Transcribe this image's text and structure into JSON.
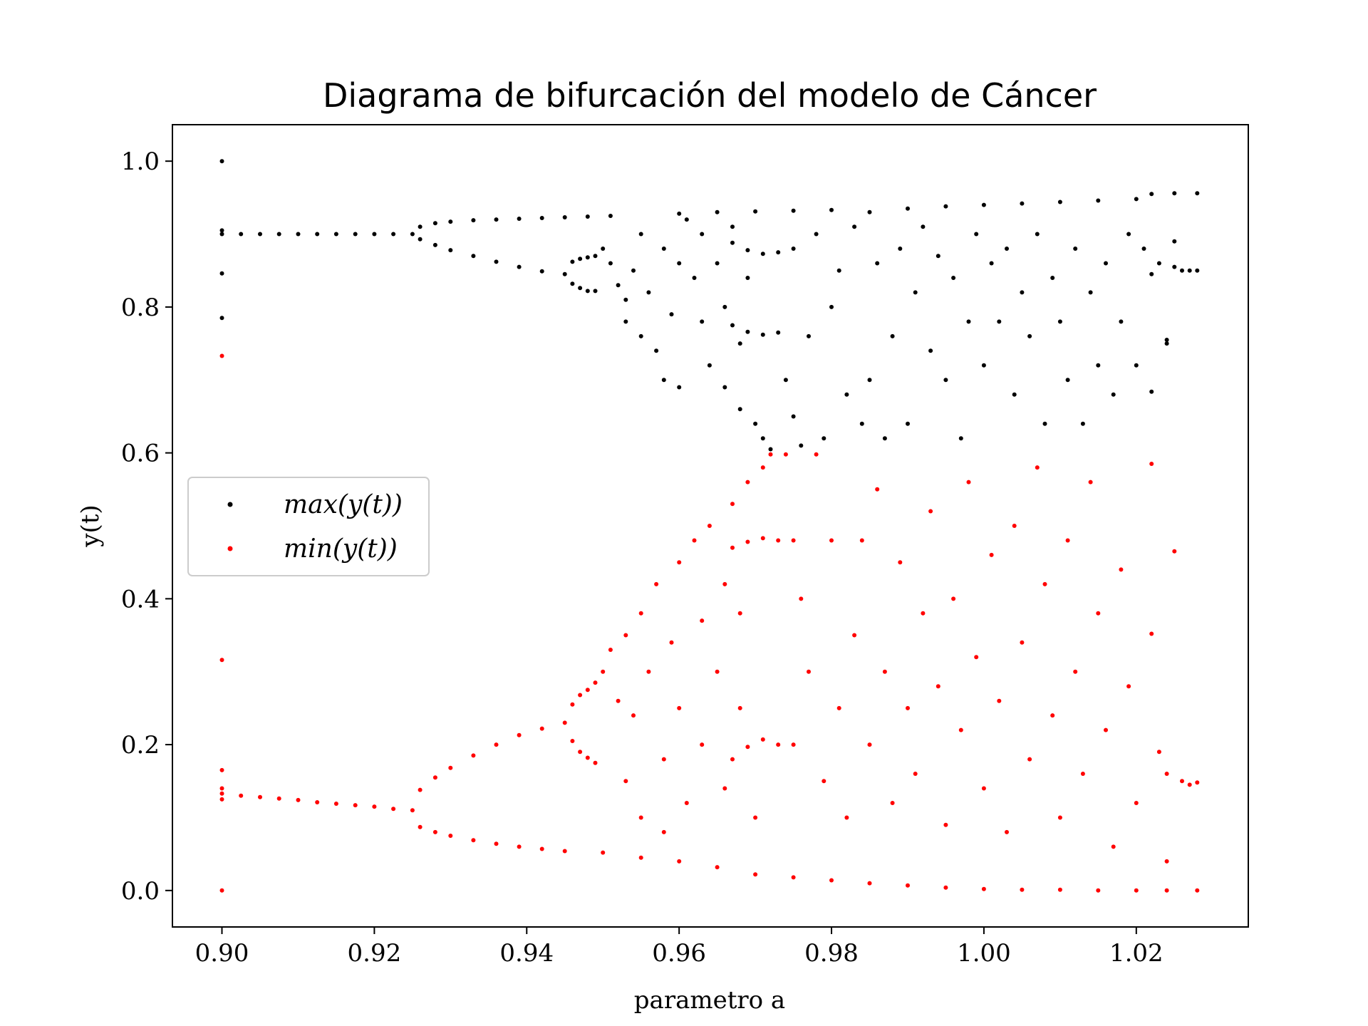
{
  "chart_data": {
    "type": "scatter",
    "title": "Diagrama de bifurcación del modelo de Cáncer",
    "xlabel": "parametro a",
    "ylabel": "y(t)",
    "xlim": [
      0.8935,
      1.0347
    ],
    "ylim": [
      -0.05,
      1.05
    ],
    "xticks": [
      0.9,
      0.92,
      0.94,
      0.96,
      0.98,
      1.0,
      1.02
    ],
    "xtick_labels": [
      "0.90",
      "0.92",
      "0.94",
      "0.96",
      "0.98",
      "1.00",
      "1.02"
    ],
    "yticks": [
      0.0,
      0.2,
      0.4,
      0.6,
      0.8,
      1.0
    ],
    "ytick_labels": [
      "0.0",
      "0.2",
      "0.4",
      "0.6",
      "0.8",
      "1.0"
    ],
    "grid": false,
    "legend_position": "center-left",
    "series": [
      {
        "name": "max(y(t))",
        "legend_label": "max(y(t))",
        "color": "#000000",
        "points": [
          [
            0.9,
            1.0
          ],
          [
            0.9,
            0.905
          ],
          [
            0.9,
            0.9
          ],
          [
            0.9,
            0.846
          ],
          [
            0.9,
            0.785
          ],
          [
            0.9025,
            0.9
          ],
          [
            0.905,
            0.9
          ],
          [
            0.9075,
            0.9
          ],
          [
            0.91,
            0.9
          ],
          [
            0.9125,
            0.9
          ],
          [
            0.915,
            0.9
          ],
          [
            0.9175,
            0.9
          ],
          [
            0.92,
            0.9
          ],
          [
            0.9225,
            0.9
          ],
          [
            0.925,
            0.9
          ],
          [
            0.926,
            0.91
          ],
          [
            0.928,
            0.915
          ],
          [
            0.93,
            0.917
          ],
          [
            0.933,
            0.919
          ],
          [
            0.936,
            0.92
          ],
          [
            0.939,
            0.921
          ],
          [
            0.942,
            0.922
          ],
          [
            0.945,
            0.923
          ],
          [
            0.948,
            0.924
          ],
          [
            0.951,
            0.925
          ],
          [
            0.926,
            0.893
          ],
          [
            0.928,
            0.885
          ],
          [
            0.93,
            0.878
          ],
          [
            0.933,
            0.87
          ],
          [
            0.936,
            0.862
          ],
          [
            0.939,
            0.855
          ],
          [
            0.942,
            0.849
          ],
          [
            0.945,
            0.845
          ],
          [
            0.946,
            0.862
          ],
          [
            0.947,
            0.866
          ],
          [
            0.948,
            0.868
          ],
          [
            0.949,
            0.87
          ],
          [
            0.946,
            0.832
          ],
          [
            0.947,
            0.826
          ],
          [
            0.948,
            0.822
          ],
          [
            0.949,
            0.822
          ],
          [
            0.95,
            0.88
          ],
          [
            0.951,
            0.86
          ],
          [
            0.952,
            0.83
          ],
          [
            0.953,
            0.81
          ],
          [
            0.953,
            0.78
          ],
          [
            0.954,
            0.85
          ],
          [
            0.955,
            0.9
          ],
          [
            0.955,
            0.76
          ],
          [
            0.956,
            0.82
          ],
          [
            0.957,
            0.74
          ],
          [
            0.958,
            0.88
          ],
          [
            0.958,
            0.7
          ],
          [
            0.959,
            0.79
          ],
          [
            0.96,
            0.69
          ],
          [
            0.96,
            0.86
          ],
          [
            0.961,
            0.92
          ],
          [
            0.962,
            0.84
          ],
          [
            0.963,
            0.78
          ],
          [
            0.963,
            0.9
          ],
          [
            0.964,
            0.72
          ],
          [
            0.965,
            0.86
          ],
          [
            0.966,
            0.69
          ],
          [
            0.966,
            0.8
          ],
          [
            0.967,
            0.91
          ],
          [
            0.968,
            0.75
          ],
          [
            0.968,
            0.66
          ],
          [
            0.969,
            0.84
          ],
          [
            0.97,
            0.64
          ],
          [
            0.971,
            0.62
          ],
          [
            0.972,
            0.605
          ],
          [
            0.967,
            0.775
          ],
          [
            0.969,
            0.766
          ],
          [
            0.971,
            0.762
          ],
          [
            0.973,
            0.765
          ],
          [
            0.967,
            0.888
          ],
          [
            0.969,
            0.878
          ],
          [
            0.971,
            0.873
          ],
          [
            0.973,
            0.875
          ],
          [
            0.974,
            0.7
          ],
          [
            0.975,
            0.65
          ],
          [
            0.975,
            0.88
          ],
          [
            0.976,
            0.61
          ],
          [
            0.977,
            0.76
          ],
          [
            0.978,
            0.9
          ],
          [
            0.979,
            0.62
          ],
          [
            0.98,
            0.8
          ],
          [
            0.981,
            0.85
          ],
          [
            0.982,
            0.68
          ],
          [
            0.983,
            0.91
          ],
          [
            0.984,
            0.64
          ],
          [
            0.985,
            0.7
          ],
          [
            0.986,
            0.86
          ],
          [
            0.987,
            0.62
          ],
          [
            0.988,
            0.76
          ],
          [
            0.989,
            0.88
          ],
          [
            0.99,
            0.64
          ],
          [
            0.991,
            0.82
          ],
          [
            0.992,
            0.91
          ],
          [
            0.993,
            0.74
          ],
          [
            0.994,
            0.87
          ],
          [
            0.995,
            0.7
          ],
          [
            0.996,
            0.84
          ],
          [
            0.997,
            0.62
          ],
          [
            0.998,
            0.78
          ],
          [
            0.999,
            0.9
          ],
          [
            1.0,
            0.72
          ],
          [
            1.001,
            0.86
          ],
          [
            1.002,
            0.78
          ],
          [
            1.003,
            0.88
          ],
          [
            1.004,
            0.68
          ],
          [
            1.005,
            0.82
          ],
          [
            1.006,
            0.76
          ],
          [
            1.007,
            0.9
          ],
          [
            1.008,
            0.64
          ],
          [
            1.009,
            0.84
          ],
          [
            1.01,
            0.78
          ],
          [
            1.011,
            0.7
          ],
          [
            1.012,
            0.88
          ],
          [
            1.013,
            0.64
          ],
          [
            1.014,
            0.82
          ],
          [
            1.015,
            0.72
          ],
          [
            1.016,
            0.86
          ],
          [
            1.017,
            0.68
          ],
          [
            1.018,
            0.78
          ],
          [
            1.019,
            0.9
          ],
          [
            1.02,
            0.72
          ],
          [
            1.021,
            0.88
          ],
          [
            1.022,
            0.845
          ],
          [
            1.023,
            0.86
          ],
          [
            1.024,
            0.75
          ],
          [
            1.025,
            0.855
          ],
          [
            1.026,
            0.85
          ],
          [
            1.027,
            0.85
          ],
          [
            1.028,
            0.85
          ],
          [
            1.022,
            0.684
          ],
          [
            1.024,
            0.755
          ],
          [
            1.025,
            0.89
          ],
          [
            0.985,
            0.93
          ],
          [
            0.99,
            0.935
          ],
          [
            0.995,
            0.938
          ],
          [
            1.0,
            0.94
          ],
          [
            1.005,
            0.942
          ],
          [
            1.01,
            0.944
          ],
          [
            1.015,
            0.946
          ],
          [
            1.02,
            0.948
          ],
          [
            1.022,
            0.955
          ],
          [
            1.025,
            0.956
          ],
          [
            1.028,
            0.956
          ],
          [
            0.96,
            0.928
          ],
          [
            0.965,
            0.93
          ],
          [
            0.97,
            0.931
          ],
          [
            0.975,
            0.932
          ],
          [
            0.98,
            0.933
          ]
        ]
      },
      {
        "name": "min(y(t))",
        "legend_label": "min(y(t))",
        "color": "#ff0000",
        "points": [
          [
            0.9,
            0.733
          ],
          [
            0.9,
            0.316
          ],
          [
            0.9,
            0.165
          ],
          [
            0.9,
            0.14
          ],
          [
            0.9,
            0.133
          ],
          [
            0.9,
            0.125
          ],
          [
            0.9,
            0.0
          ],
          [
            0.9025,
            0.13
          ],
          [
            0.905,
            0.128
          ],
          [
            0.9075,
            0.126
          ],
          [
            0.91,
            0.124
          ],
          [
            0.9125,
            0.121
          ],
          [
            0.915,
            0.119
          ],
          [
            0.9175,
            0.117
          ],
          [
            0.92,
            0.115
          ],
          [
            0.9225,
            0.112
          ],
          [
            0.925,
            0.11
          ],
          [
            0.926,
            0.138
          ],
          [
            0.928,
            0.155
          ],
          [
            0.93,
            0.168
          ],
          [
            0.933,
            0.185
          ],
          [
            0.936,
            0.2
          ],
          [
            0.939,
            0.213
          ],
          [
            0.942,
            0.222
          ],
          [
            0.945,
            0.23
          ],
          [
            0.926,
            0.087
          ],
          [
            0.928,
            0.08
          ],
          [
            0.93,
            0.075
          ],
          [
            0.933,
            0.069
          ],
          [
            0.936,
            0.064
          ],
          [
            0.939,
            0.06
          ],
          [
            0.942,
            0.057
          ],
          [
            0.945,
            0.054
          ],
          [
            0.946,
            0.255
          ],
          [
            0.947,
            0.268
          ],
          [
            0.948,
            0.275
          ],
          [
            0.949,
            0.285
          ],
          [
            0.946,
            0.205
          ],
          [
            0.947,
            0.19
          ],
          [
            0.948,
            0.182
          ],
          [
            0.949,
            0.175
          ],
          [
            0.95,
            0.3
          ],
          [
            0.951,
            0.33
          ],
          [
            0.952,
            0.26
          ],
          [
            0.953,
            0.35
          ],
          [
            0.953,
            0.15
          ],
          [
            0.954,
            0.24
          ],
          [
            0.955,
            0.38
          ],
          [
            0.955,
            0.1
          ],
          [
            0.956,
            0.3
          ],
          [
            0.957,
            0.42
          ],
          [
            0.958,
            0.18
          ],
          [
            0.958,
            0.08
          ],
          [
            0.959,
            0.34
          ],
          [
            0.96,
            0.45
          ],
          [
            0.96,
            0.25
          ],
          [
            0.961,
            0.12
          ],
          [
            0.962,
            0.48
          ],
          [
            0.963,
            0.37
          ],
          [
            0.963,
            0.2
          ],
          [
            0.964,
            0.5
          ],
          [
            0.965,
            0.3
          ],
          [
            0.966,
            0.42
          ],
          [
            0.966,
            0.14
          ],
          [
            0.967,
            0.53
          ],
          [
            0.968,
            0.25
          ],
          [
            0.968,
            0.38
          ],
          [
            0.969,
            0.56
          ],
          [
            0.97,
            0.1
          ],
          [
            0.971,
            0.58
          ],
          [
            0.972,
            0.598
          ],
          [
            0.967,
            0.47
          ],
          [
            0.969,
            0.478
          ],
          [
            0.971,
            0.483
          ],
          [
            0.973,
            0.48
          ],
          [
            0.967,
            0.18
          ],
          [
            0.969,
            0.197
          ],
          [
            0.971,
            0.207
          ],
          [
            0.973,
            0.2
          ],
          [
            0.974,
            0.598
          ],
          [
            0.975,
            0.48
          ],
          [
            0.975,
            0.2
          ],
          [
            0.976,
            0.4
          ],
          [
            0.977,
            0.3
          ],
          [
            0.978,
            0.598
          ],
          [
            0.979,
            0.15
          ],
          [
            0.98,
            0.48
          ],
          [
            0.981,
            0.25
          ],
          [
            0.982,
            0.1
          ],
          [
            0.983,
            0.35
          ],
          [
            0.984,
            0.48
          ],
          [
            0.985,
            0.2
          ],
          [
            0.986,
            0.55
          ],
          [
            0.987,
            0.3
          ],
          [
            0.988,
            0.12
          ],
          [
            0.989,
            0.45
          ],
          [
            0.99,
            0.25
          ],
          [
            0.991,
            0.16
          ],
          [
            0.992,
            0.38
          ],
          [
            0.993,
            0.52
          ],
          [
            0.994,
            0.28
          ],
          [
            0.995,
            0.09
          ],
          [
            0.996,
            0.4
          ],
          [
            0.997,
            0.22
          ],
          [
            0.998,
            0.56
          ],
          [
            0.999,
            0.32
          ],
          [
            1.0,
            0.14
          ],
          [
            1.001,
            0.46
          ],
          [
            1.002,
            0.26
          ],
          [
            1.003,
            0.08
          ],
          [
            1.004,
            0.5
          ],
          [
            1.005,
            0.34
          ],
          [
            1.006,
            0.18
          ],
          [
            1.007,
            0.58
          ],
          [
            1.008,
            0.42
          ],
          [
            1.009,
            0.24
          ],
          [
            1.01,
            0.1
          ],
          [
            1.011,
            0.48
          ],
          [
            1.012,
            0.3
          ],
          [
            1.013,
            0.16
          ],
          [
            1.014,
            0.56
          ],
          [
            1.015,
            0.38
          ],
          [
            1.016,
            0.22
          ],
          [
            1.017,
            0.06
          ],
          [
            1.018,
            0.44
          ],
          [
            1.019,
            0.28
          ],
          [
            1.02,
            0.12
          ],
          [
            1.022,
            0.585
          ],
          [
            1.022,
            0.352
          ],
          [
            1.023,
            0.19
          ],
          [
            1.024,
            0.16
          ],
          [
            1.025,
            0.465
          ],
          [
            1.026,
            0.15
          ],
          [
            1.027,
            0.145
          ],
          [
            1.028,
            0.148
          ],
          [
            1.024,
            0.04
          ],
          [
            0.95,
            0.052
          ],
          [
            0.955,
            0.045
          ],
          [
            0.96,
            0.04
          ],
          [
            0.965,
            0.032
          ],
          [
            0.97,
            0.022
          ],
          [
            0.975,
            0.018
          ],
          [
            0.98,
            0.014
          ],
          [
            0.985,
            0.01
          ],
          [
            0.99,
            0.007
          ],
          [
            0.995,
            0.004
          ],
          [
            1.0,
            0.002
          ],
          [
            1.005,
            0.001
          ],
          [
            1.01,
            0.001
          ],
          [
            1.015,
            0.0
          ],
          [
            1.02,
            0.0
          ],
          [
            1.024,
            0.0
          ],
          [
            1.028,
            0.0
          ]
        ]
      }
    ]
  }
}
